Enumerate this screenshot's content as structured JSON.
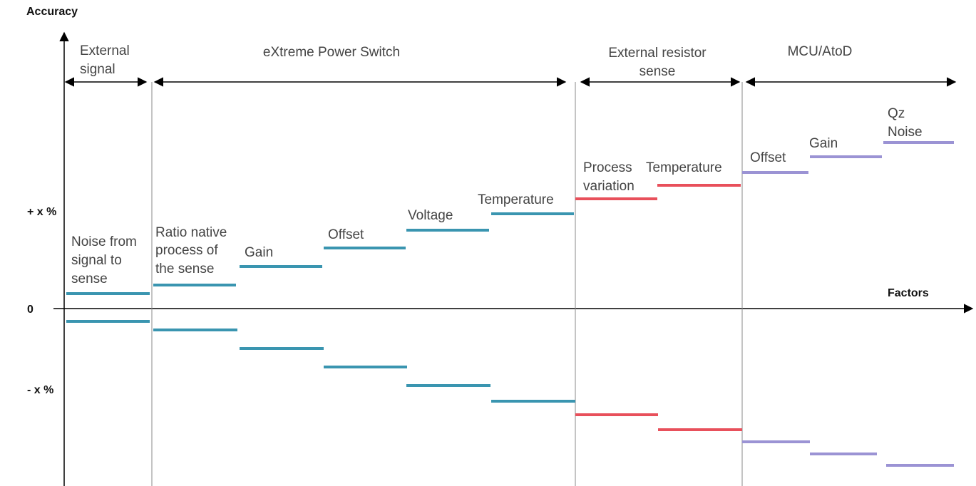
{
  "axes": {
    "y_label": "Accuracy",
    "x_label": "Factors",
    "plus": "+ x %",
    "zero": "0",
    "minus": "- x %"
  },
  "groups": [
    {
      "label": [
        "External",
        "signal"
      ]
    },
    {
      "label": [
        "eXtreme Power Switch"
      ]
    },
    {
      "label": [
        "External resistor",
        "sense"
      ]
    },
    {
      "label": [
        "MCU/AtoD"
      ]
    }
  ],
  "factors": [
    {
      "label": [
        "Noise from",
        "signal to",
        "sense"
      ]
    },
    {
      "label": [
        "Ratio native",
        "process of",
        "the sense"
      ]
    },
    {
      "label": [
        "Gain"
      ]
    },
    {
      "label": [
        "Offset"
      ]
    },
    {
      "label": [
        "Voltage"
      ]
    },
    {
      "label": [
        "Temperature"
      ]
    },
    {
      "label": [
        "Process",
        "variation"
      ]
    },
    {
      "label": [
        "Temperature"
      ]
    },
    {
      "label": [
        "Offset"
      ]
    },
    {
      "label": [
        "Gain"
      ]
    },
    {
      "label": [
        "Qz",
        "Noise"
      ]
    }
  ]
}
